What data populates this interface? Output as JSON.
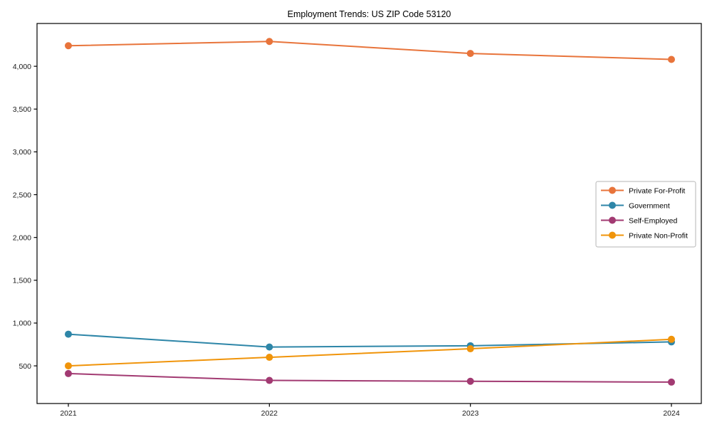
{
  "chart_data": {
    "type": "line",
    "title": "Employment Trends: US ZIP Code 53120",
    "x": [
      "2021",
      "2022",
      "2023",
      "2024"
    ],
    "series": [
      {
        "name": "Private For-Profit",
        "color": "#e8743b",
        "values": [
          4240,
          4290,
          4150,
          4080
        ]
      },
      {
        "name": "Government",
        "color": "#2e86a8",
        "values": [
          870,
          720,
          735,
          780
        ]
      },
      {
        "name": "Self-Employed",
        "color": "#a23a72",
        "values": [
          410,
          330,
          320,
          310
        ]
      },
      {
        "name": "Private Non-Profit",
        "color": "#f0940a",
        "values": [
          500,
          600,
          700,
          810
        ]
      }
    ],
    "yticks": [
      500,
      1000,
      1500,
      2000,
      2500,
      3000,
      3500,
      4000
    ],
    "ylim": [
      60,
      4500
    ],
    "xlabel": "",
    "ylabel": "",
    "grid": false,
    "legend_position": "right",
    "axis_color": "#000000",
    "tick_label_color": "#1a1a1a",
    "legend_border_color": "#b5b5b5"
  }
}
